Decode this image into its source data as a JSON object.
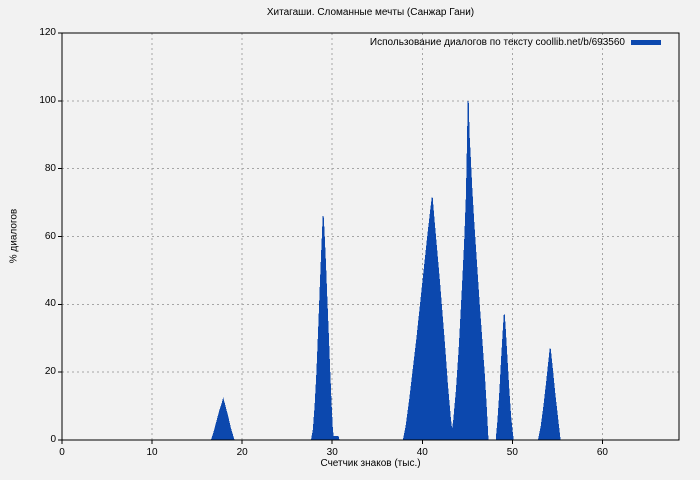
{
  "chart_data": {
    "type": "area",
    "title": "Хитагаши. Сломанные мечты (Санжар Гани)",
    "xlabel": "Счетчик знаков (тыс.)",
    "ylabel": "% диалогов",
    "xlim": [
      0,
      68.5
    ],
    "ylim": [
      0,
      120
    ],
    "xticks": [
      0,
      10,
      20,
      30,
      40,
      50,
      60
    ],
    "yticks": [
      0,
      20,
      40,
      60,
      80,
      100,
      120
    ],
    "grid": true,
    "grid_style": "dashed",
    "legend_position": "top-right-inside",
    "series": [
      {
        "name": "Использование диалогов по тексту coollib.net/b/693560",
        "color": "#0c48ae",
        "points": [
          [
            0,
            0
          ],
          [
            16.6,
            0
          ],
          [
            16.9,
            2.5
          ],
          [
            17.2,
            5.5
          ],
          [
            17.5,
            8.5
          ],
          [
            17.8,
            11
          ],
          [
            17.9,
            12
          ],
          [
            18.1,
            10
          ],
          [
            18.4,
            7
          ],
          [
            18.7,
            3.5
          ],
          [
            19.1,
            0
          ],
          [
            27.7,
            0
          ],
          [
            27.9,
            3
          ],
          [
            28.1,
            10
          ],
          [
            28.3,
            20
          ],
          [
            28.5,
            33
          ],
          [
            28.7,
            47
          ],
          [
            28.85,
            57
          ],
          [
            29,
            66
          ],
          [
            29.1,
            61
          ],
          [
            29.25,
            52
          ],
          [
            29.4,
            42
          ],
          [
            29.55,
            32
          ],
          [
            29.7,
            22
          ],
          [
            29.85,
            12
          ],
          [
            30,
            4
          ],
          [
            30.1,
            1
          ],
          [
            30.65,
            1
          ],
          [
            30.75,
            0
          ],
          [
            37.9,
            0
          ],
          [
            38.2,
            4
          ],
          [
            38.6,
            12
          ],
          [
            39,
            21
          ],
          [
            39.4,
            30
          ],
          [
            39.8,
            40
          ],
          [
            40.2,
            50
          ],
          [
            40.6,
            60
          ],
          [
            40.9,
            67
          ],
          [
            41.1,
            71.5
          ],
          [
            41.3,
            65
          ],
          [
            41.6,
            56
          ],
          [
            41.9,
            47
          ],
          [
            42.2,
            37
          ],
          [
            42.5,
            27
          ],
          [
            42.8,
            16
          ],
          [
            43.1,
            7
          ],
          [
            43.3,
            2
          ],
          [
            43.5,
            6
          ],
          [
            43.8,
            15
          ],
          [
            44.1,
            27
          ],
          [
            44.4,
            42
          ],
          [
            44.7,
            58
          ],
          [
            44.9,
            72
          ],
          [
            45,
            85
          ],
          [
            45.1,
            100
          ],
          [
            45.2,
            90
          ],
          [
            45.35,
            82
          ],
          [
            45.5,
            74
          ],
          [
            45.7,
            65
          ],
          [
            45.9,
            57
          ],
          [
            46.1,
            49
          ],
          [
            46.3,
            41
          ],
          [
            46.6,
            30
          ],
          [
            46.9,
            19
          ],
          [
            47.1,
            10
          ],
          [
            47.3,
            0
          ],
          [
            48.2,
            0
          ],
          [
            48.4,
            6
          ],
          [
            48.6,
            14
          ],
          [
            48.8,
            24
          ],
          [
            49,
            33
          ],
          [
            49.1,
            37
          ],
          [
            49.2,
            33
          ],
          [
            49.4,
            24
          ],
          [
            49.6,
            15
          ],
          [
            49.8,
            7
          ],
          [
            50,
            2
          ],
          [
            50.1,
            0
          ],
          [
            52.9,
            0
          ],
          [
            53.2,
            4
          ],
          [
            53.5,
            10
          ],
          [
            53.8,
            17
          ],
          [
            54,
            22
          ],
          [
            54.2,
            27
          ],
          [
            54.4,
            22
          ],
          [
            54.7,
            14
          ],
          [
            55,
            7
          ],
          [
            55.3,
            0
          ],
          [
            68.5,
            0
          ]
        ]
      }
    ],
    "peaks": [
      {
        "x": 17.9,
        "y": 12
      },
      {
        "x": 29.0,
        "y": 66
      },
      {
        "x": 41.1,
        "y": 71.5
      },
      {
        "x": 45.1,
        "y": 100
      },
      {
        "x": 49.1,
        "y": 37
      },
      {
        "x": 54.2,
        "y": 27
      }
    ]
  },
  "colors": {
    "background": "#f2f2f2",
    "fill": "#0c48ae",
    "grid": "#a6a6a6",
    "axis": "#000000",
    "text": "#000000"
  }
}
